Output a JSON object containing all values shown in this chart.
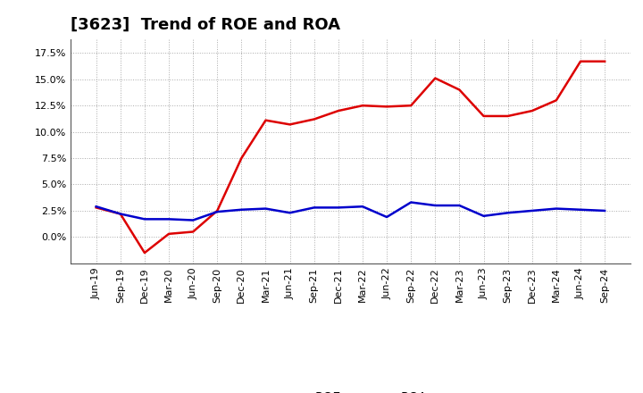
{
  "title": "[3623]  Trend of ROE and ROA",
  "x_labels": [
    "Jun-19",
    "Sep-19",
    "Dec-19",
    "Mar-20",
    "Jun-20",
    "Sep-20",
    "Dec-20",
    "Mar-21",
    "Jun-21",
    "Sep-21",
    "Dec-21",
    "Mar-22",
    "Jun-22",
    "Sep-22",
    "Dec-22",
    "Mar-23",
    "Jun-23",
    "Sep-23",
    "Dec-23",
    "Mar-24",
    "Jun-24",
    "Sep-24"
  ],
  "roe": [
    2.8,
    2.2,
    -1.5,
    0.3,
    0.5,
    2.5,
    7.5,
    11.1,
    10.7,
    11.2,
    12.0,
    12.5,
    12.4,
    12.5,
    15.1,
    14.0,
    11.5,
    11.5,
    12.0,
    13.0,
    16.7,
    16.7
  ],
  "roa": [
    2.9,
    2.2,
    1.7,
    1.7,
    1.6,
    2.4,
    2.6,
    2.7,
    2.3,
    2.8,
    2.8,
    2.9,
    1.9,
    3.3,
    3.0,
    3.0,
    2.0,
    2.3,
    2.5,
    2.7,
    2.6,
    2.5
  ],
  "roe_color": "#dd0000",
  "roa_color": "#0000cc",
  "background_color": "#ffffff",
  "grid_color": "#aaaaaa",
  "ylim": [
    -2.5,
    18.8
  ],
  "yticks": [
    0.0,
    2.5,
    5.0,
    7.5,
    10.0,
    12.5,
    15.0,
    17.5
  ],
  "title_fontsize": 13,
  "legend_fontsize": 10,
  "tick_fontsize": 8
}
